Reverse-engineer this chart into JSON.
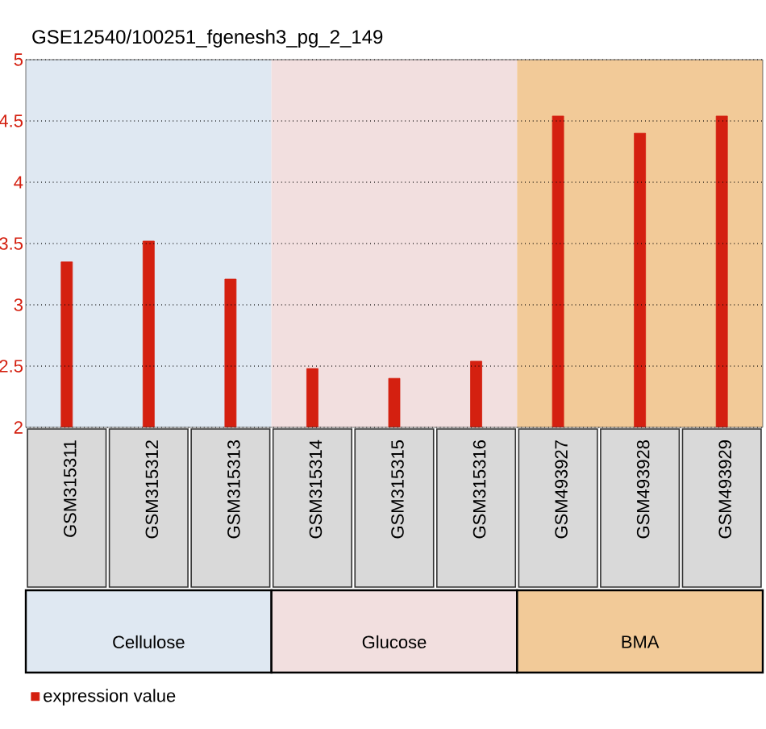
{
  "chart_data": {
    "type": "bar",
    "title": "GSE12540/100251_fgenesh3_pg_2_149",
    "categories": [
      "GSM315311",
      "GSM315312",
      "GSM315313",
      "GSM315314",
      "GSM315315",
      "GSM315316",
      "GSM493927",
      "GSM493928",
      "GSM493929"
    ],
    "series": [
      {
        "name": "expression value",
        "color": "#d42010",
        "values": [
          3.35,
          3.52,
          3.21,
          2.48,
          2.4,
          2.54,
          4.54,
          4.4,
          4.54
        ]
      }
    ],
    "ylim": [
      2,
      5
    ],
    "yticks": [
      2,
      2.5,
      3,
      3.5,
      4,
      4.5,
      5
    ],
    "grid": "y",
    "legend": "bottom left",
    "bands": [
      {
        "axis": "x",
        "from": "GSM315311",
        "to": "GSM315313",
        "color": "#dfe8f2"
      },
      {
        "axis": "x",
        "from": "GSM315314",
        "to": "GSM315316",
        "color": "#f2dfdf"
      },
      {
        "axis": "x",
        "from": "GSM493927",
        "to": "GSM493929",
        "color": "#f2ca98"
      }
    ],
    "annotations": [
      "Cellulose",
      "Glucose",
      "BMA"
    ]
  }
}
